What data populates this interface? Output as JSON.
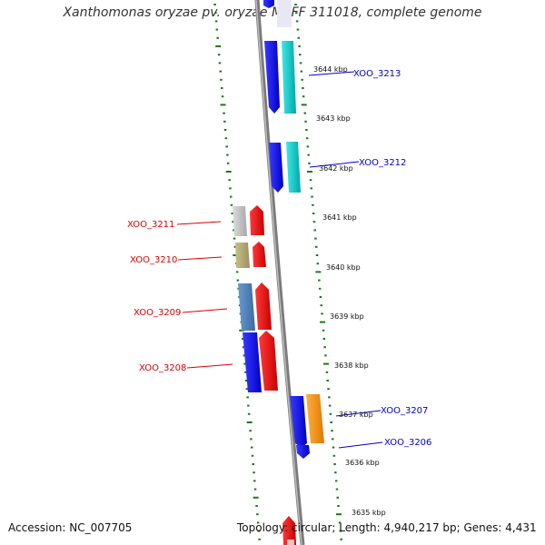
{
  "title": "Xanthomonas oryzae pv. oryzae MAFF 311018, complete genome",
  "footer": {
    "accession": "Accession: NC_007705",
    "topology": "Topology: circular; Length: 4,940,217 bp; Genes: 4,431"
  },
  "scale": [
    "3644 kbp",
    "3643 kbp",
    "3642 kbp",
    "3641 kbp",
    "3640 kbp",
    "3639 kbp",
    "3638 kbp",
    "3637 kbp",
    "3636 kbp",
    "3635 kbp"
  ],
  "genes": {
    "left": [
      "XOO_3211",
      "XOO_3210",
      "XOO_3209",
      "XOO_3208"
    ],
    "right": [
      "XOO_3213",
      "XOO_3212",
      "XOO_3207",
      "XOO_3206"
    ]
  },
  "colors": {
    "forward_label": "#0000cc",
    "reverse_label": "#dd0000",
    "backbone": "#888888",
    "dots": "#1a7a1a"
  }
}
